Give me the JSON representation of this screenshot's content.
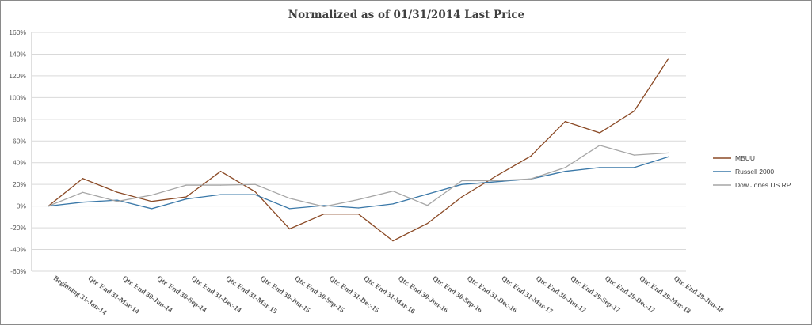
{
  "chart_data": {
    "type": "line",
    "title": "Normalized as of 01/31/2014 Last Price",
    "xlabel": "",
    "ylabel": "",
    "ylim": [
      -60,
      160
    ],
    "yticks": [
      "160%",
      "140%",
      "120%",
      "100%",
      "80%",
      "60%",
      "40%",
      "20%",
      "0%",
      "-20%",
      "-40%",
      "-60%"
    ],
    "ytick_values": [
      160,
      140,
      120,
      100,
      80,
      60,
      40,
      20,
      0,
      -20,
      -40,
      -60
    ],
    "grid": true,
    "legend_position": "right",
    "categories": [
      "Beginning 31-Jan-14",
      "Qtr. End 31-Mar-14",
      "Qtr. End 30-Jun-14",
      "Qtr. End 30-Sep-14",
      "Qtr. End 31-Dec-14",
      "Qtr. End 31-Mar-15",
      "Qtr. End 30-Jun-15",
      "Qtr. End 30-Sep-15",
      "Qtr. End 31-Dec-15",
      "Qtr. End 31-Mar-16",
      "Qtr. End 30-Jun-16",
      "Qtr. End 30-Sep-16",
      "Qtr. End 31-Dec-16",
      "Qtr. End 31-Mar-17",
      "Qtr. End 30-Jun-17",
      "Qtr. End 29-Sep-17",
      "Qtr. End 29-Dec-17",
      "Qtr. End 29-Mar-18",
      "Qtr. End 29-Jun-18"
    ],
    "series": [
      {
        "name": "MBUU",
        "color": "#8B4A26",
        "values": [
          0,
          25.4,
          12.8,
          4.3,
          8.5,
          32,
          13.3,
          -21,
          -7.3,
          -7.3,
          -32,
          -16,
          8.5,
          27.8,
          46,
          78,
          67.5,
          87.5,
          136
        ]
      },
      {
        "name": "Russell 2000",
        "color": "#3A78A8",
        "values": [
          0,
          3.6,
          5.5,
          -2.4,
          6.5,
          10.6,
          10.6,
          -2.4,
          0.5,
          -1.7,
          2,
          11,
          20,
          22.5,
          25,
          32,
          35.5,
          35.5,
          45.5
        ]
      },
      {
        "name": "Dow Jones US RP",
        "color": "#A6A6A6",
        "values": [
          0,
          12.6,
          4.3,
          10.1,
          19.3,
          19.3,
          20,
          7.2,
          -0.5,
          6,
          13.8,
          0.7,
          23.4,
          23.4,
          25,
          35.5,
          56,
          47,
          49
        ]
      }
    ]
  }
}
